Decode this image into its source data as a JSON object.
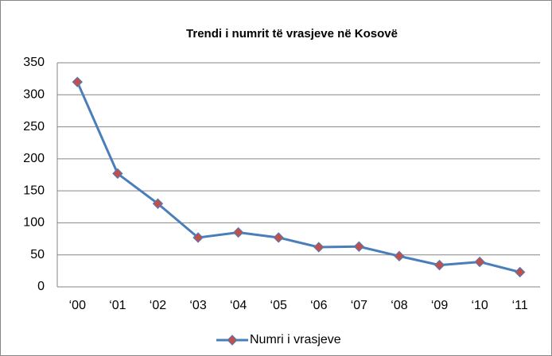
{
  "chart_data": {
    "type": "line",
    "title": "Trendi i numrit të vrasjeve në Kosovë",
    "categories": [
      "‘00",
      "‘01",
      "‘02",
      "‘03",
      "‘04",
      "‘05",
      "‘06",
      "‘07",
      "‘08",
      "‘09",
      "‘10",
      "‘11"
    ],
    "series": [
      {
        "name": "Numri i vrasjeve",
        "color": "#4a7ebb",
        "marker_color": "#c0504d",
        "values": [
          320,
          177,
          130,
          77,
          85,
          77,
          62,
          63,
          48,
          34,
          39,
          23
        ]
      }
    ],
    "ylim": [
      0,
      350
    ],
    "yticks": [
      0,
      50,
      100,
      150,
      200,
      250,
      300,
      350
    ],
    "grid": true,
    "legend": "bottom"
  }
}
